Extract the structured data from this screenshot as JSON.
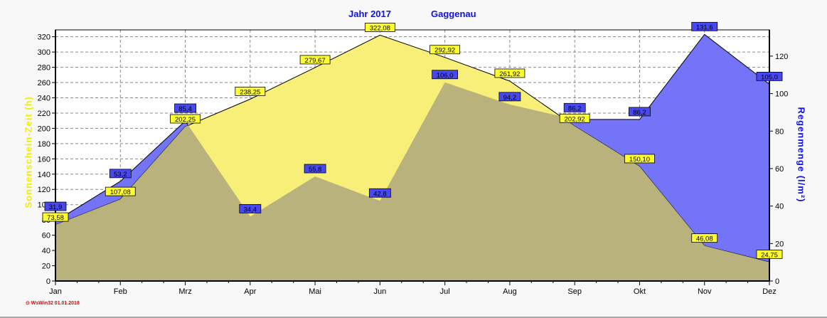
{
  "header": {
    "title_year": "Jahr  2017",
    "title_location": "Gaggenau"
  },
  "footer": {
    "credit": "⊙ WsWin32  01.01.2018"
  },
  "chart_data": {
    "type": "area",
    "categories": [
      "Jan",
      "Feb",
      "Mrz",
      "Apr",
      "Mai",
      "Jun",
      "Jul",
      "Aug",
      "Sep",
      "Okt",
      "Nov",
      "Dez"
    ],
    "series": [
      {
        "name": "Regenmenge",
        "axis": "right",
        "color": "#7474f8",
        "values": [
          31.9,
          53.2,
          85.4,
          34.4,
          55.8,
          42.8,
          106.0,
          94.2,
          86.2,
          86.2,
          131.6,
          105.0
        ],
        "labels": [
          "31,9",
          "53,2",
          "85,4",
          "34,4",
          "55,8",
          "42,8",
          "106,0",
          "94,2",
          "86,2",
          "86,2",
          "131,6",
          "105,0"
        ]
      },
      {
        "name": "Sonnenschein-Zeit",
        "axis": "left",
        "color": "#f7ef78",
        "values": [
          73.58,
          107.08,
          202.25,
          238.25,
          279.67,
          322.08,
          292.92,
          261.92,
          202.92,
          150.1,
          46.08,
          24.75
        ],
        "labels": [
          "73,58",
          "107,08",
          "202,25",
          "238,25",
          "279,67",
          "322,08",
          "292,92",
          "261,92",
          "202,92",
          "150,10",
          "46,08",
          "24,75"
        ]
      }
    ],
    "ylabel": "Sonnenschein-Zeit  (h)",
    "y2label": "Regenmenge  (l/m²)",
    "ylim": [
      0,
      329
    ],
    "y2lim": [
      0,
      134
    ],
    "yticks": [
      0,
      20,
      40,
      60,
      80,
      100,
      120,
      140,
      160,
      180,
      200,
      220,
      240,
      260,
      280,
      300,
      320
    ],
    "y2ticks": [
      0,
      20,
      40,
      60,
      80,
      100,
      120
    ],
    "grid": true
  }
}
